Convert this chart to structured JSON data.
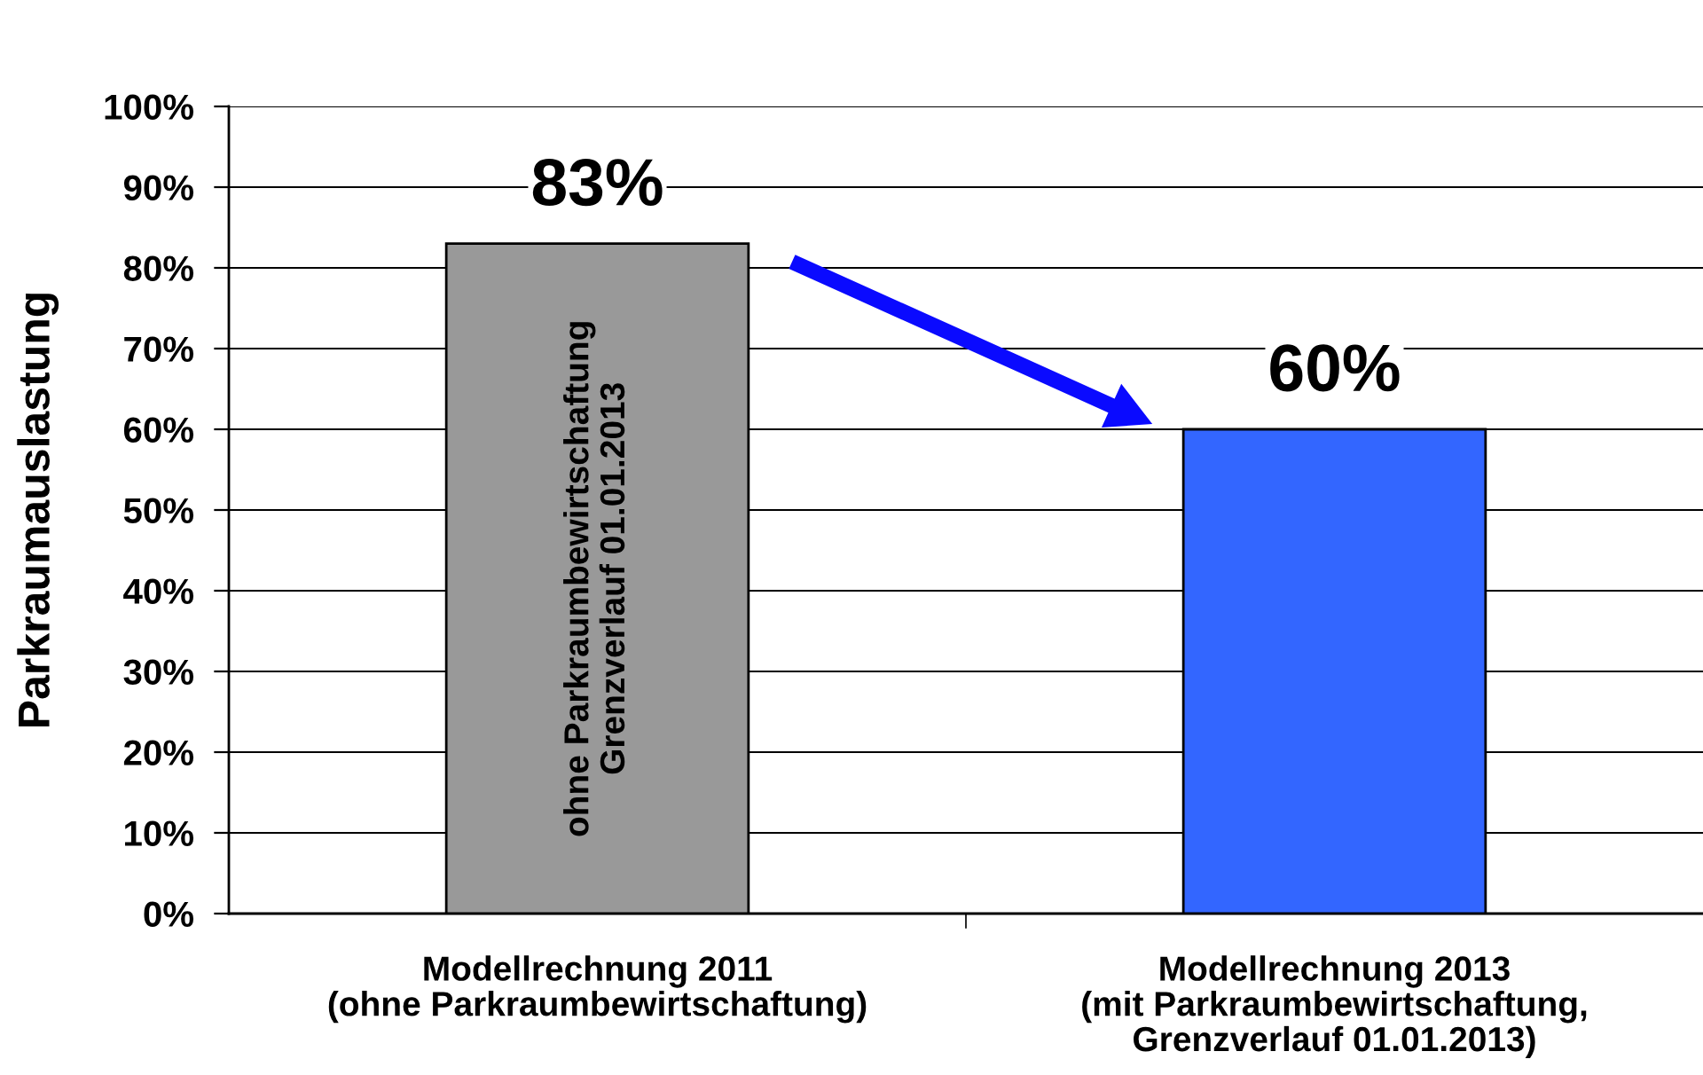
{
  "chart_data": {
    "type": "bar",
    "ylabel": "Parkraumauslastung",
    "categories": [
      "Modellrechnung 2011\n(ohne Parkraumbewirtschaftung)",
      "Modellrechnung 2013\n(mit Parkraumbewirtschaftung,\nGrenzverlauf 01.01.2013)"
    ],
    "values": [
      83,
      60
    ],
    "colors": [
      "#999999",
      "#3366ff"
    ],
    "value_labels": [
      "83%",
      "60%"
    ],
    "ylim": [
      0,
      100
    ],
    "yticks": [
      {
        "value": 0,
        "label": "0%"
      },
      {
        "value": 10,
        "label": "10%"
      },
      {
        "value": 20,
        "label": "20%"
      },
      {
        "value": 30,
        "label": "30%"
      },
      {
        "value": 40,
        "label": "40%"
      },
      {
        "value": 50,
        "label": "50%"
      },
      {
        "value": 60,
        "label": "60%"
      },
      {
        "value": 70,
        "label": "70%"
      },
      {
        "value": 80,
        "label": "80%"
      },
      {
        "value": 90,
        "label": "90%"
      },
      {
        "value": 100,
        "label": "100%"
      }
    ],
    "grid": "y",
    "annotations": [
      "ohne Parkraumbewirtschaftung\nGrenzverlauf 01.01.2013"
    ]
  }
}
